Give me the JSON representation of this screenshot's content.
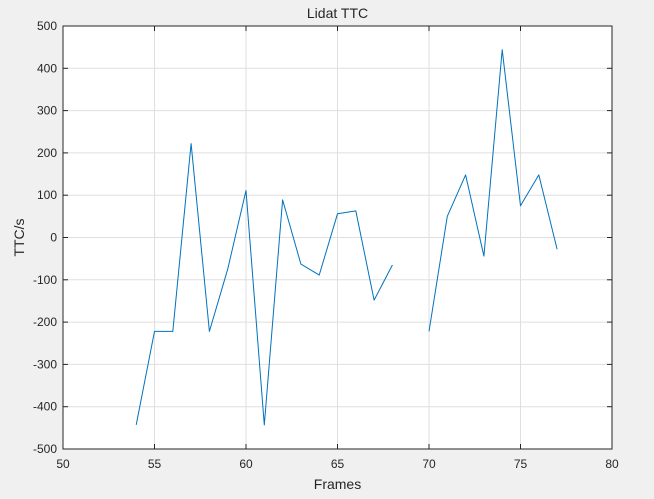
{
  "chart_data": {
    "type": "line",
    "title": "Lidat TTC",
    "xlabel": "Frames",
    "ylabel": "TTC/s",
    "xlim": [
      50,
      80
    ],
    "ylim": [
      -500,
      500
    ],
    "xticks": [
      50,
      55,
      60,
      65,
      70,
      75,
      80
    ],
    "yticks": [
      -500,
      -400,
      -300,
      -200,
      -100,
      0,
      100,
      200,
      300,
      400,
      500
    ],
    "grid": true,
    "line_color": "#0072bd",
    "series": [
      {
        "x": [
          54,
          55,
          56,
          57,
          58,
          59,
          60,
          61,
          62,
          63,
          64,
          65,
          66,
          67,
          68,
          69,
          70,
          71,
          72,
          73,
          74,
          75,
          76,
          77
        ],
        "y": [
          -443,
          -222,
          -222,
          222,
          -222,
          -75,
          111,
          -443,
          89,
          -63,
          -89,
          56,
          63,
          -148,
          -65,
          null,
          -222,
          50,
          148,
          -44,
          444,
          75,
          148,
          -28
        ]
      }
    ]
  }
}
